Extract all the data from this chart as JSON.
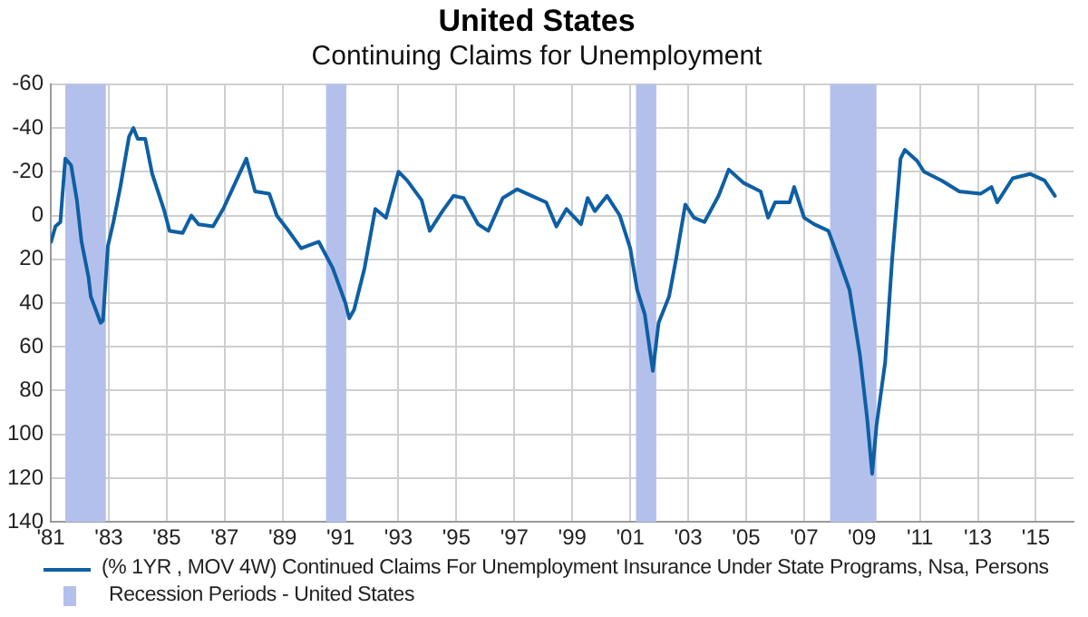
{
  "chart_data": {
    "type": "line",
    "title": "United States",
    "subtitle": "Continuing Claims for Unemployment",
    "x": [
      1981.01,
      1981.16,
      1981.33,
      1981.5,
      1981.7,
      1981.9,
      1982.06,
      1982.3,
      1982.38,
      1982.55,
      1982.72,
      1982.8,
      1982.97,
      1983.16,
      1983.4,
      1983.7,
      1983.85,
      1984.0,
      1984.26,
      1984.5,
      1984.92,
      1985.1,
      1985.55,
      1985.85,
      1986.1,
      1986.6,
      1986.95,
      1987.3,
      1987.75,
      1988.05,
      1988.54,
      1988.8,
      1989.15,
      1989.64,
      1990.25,
      1990.73,
      1991.17,
      1991.3,
      1991.47,
      1991.83,
      1992.2,
      1992.57,
      1993.0,
      1993.3,
      1993.8,
      1994.08,
      1994.52,
      1994.9,
      1995.25,
      1995.75,
      1996.1,
      1996.6,
      1997.1,
      1997.6,
      1998.1,
      1998.45,
      1998.8,
      1999.3,
      1999.53,
      1999.78,
      2000.2,
      2000.64,
      2001.0,
      2001.24,
      2001.5,
      2001.78,
      2001.98,
      2002.34,
      2002.58,
      2002.9,
      2003.2,
      2003.56,
      2004.05,
      2004.4,
      2004.9,
      2005.5,
      2005.76,
      2006.0,
      2006.5,
      2006.66,
      2007.0,
      2007.35,
      2007.84,
      2008.2,
      2008.57,
      2008.93,
      2009.18,
      2009.35,
      2009.5,
      2009.8,
      2010.04,
      2010.33,
      2010.48,
      2010.9,
      2011.14,
      2011.75,
      2012.36,
      2013.1,
      2013.47,
      2013.67,
      2014.2,
      2014.8,
      2015.3,
      2015.66
    ],
    "series": [
      {
        "name": "(% 1YR , MOV 4W) Continued Claims For Unemployment Insurance Under State Programs, Nsa, Persons",
        "color": "#0e5fa3",
        "values": [
          12,
          5,
          3,
          -26,
          -23,
          -7,
          12,
          28,
          37,
          43,
          49,
          48,
          14,
          3,
          -13,
          -36,
          -40,
          -35,
          -35,
          -19,
          -2,
          7,
          8,
          0,
          4,
          5,
          -3,
          -13,
          -26,
          -11,
          -10,
          0,
          6,
          15,
          12,
          24,
          40,
          47,
          43,
          24,
          -3,
          1,
          -20,
          -16,
          -7,
          7,
          -2,
          -9,
          -8,
          4,
          7,
          -8,
          -12,
          -9,
          -6,
          5,
          -3,
          4,
          -8,
          -2,
          -9,
          0,
          15,
          34,
          45,
          71,
          49,
          37,
          20,
          -5,
          1,
          3,
          -9,
          -21,
          -15,
          -11,
          1,
          -6,
          -6,
          -13,
          1,
          4,
          7,
          20,
          34,
          64,
          93,
          118,
          96,
          67,
          20,
          -26,
          -30,
          -25,
          -20,
          -16,
          -11,
          -10,
          -13,
          -6,
          -17,
          -19,
          -16,
          -9
        ]
      }
    ],
    "xlim": [
      1981,
      2016.3
    ],
    "xticks": [
      {
        "value": 1981,
        "label": "'81"
      },
      {
        "value": 1983,
        "label": "'83"
      },
      {
        "value": 1985,
        "label": "'85"
      },
      {
        "value": 1987,
        "label": "'87"
      },
      {
        "value": 1989,
        "label": "'89"
      },
      {
        "value": 1991,
        "label": "'91"
      },
      {
        "value": 1993,
        "label": "'93"
      },
      {
        "value": 1995,
        "label": "'95"
      },
      {
        "value": 1997,
        "label": "'97"
      },
      {
        "value": 1999,
        "label": "'99"
      },
      {
        "value": 2001,
        "label": "'01"
      },
      {
        "value": 2003,
        "label": "'03"
      },
      {
        "value": 2005,
        "label": "'05"
      },
      {
        "value": 2007,
        "label": "'07"
      },
      {
        "value": 2009,
        "label": "'09"
      },
      {
        "value": 2011,
        "label": "'11"
      },
      {
        "value": 2013,
        "label": "'13"
      },
      {
        "value": 2015,
        "label": "'15"
      }
    ],
    "ylim": [
      140,
      -60
    ],
    "yticks": [
      -60,
      -40,
      -20,
      0,
      20,
      40,
      60,
      80,
      100,
      120,
      140
    ],
    "bands": [
      {
        "axis": "x",
        "from": 1981.5,
        "to": 1982.9,
        "label": "Recession Periods - United States",
        "color": "#b4c0ec"
      },
      {
        "axis": "x",
        "from": 1990.5,
        "to": 1991.2,
        "color": "#b4c0ec"
      },
      {
        "axis": "x",
        "from": 2001.2,
        "to": 2001.9,
        "color": "#b4c0ec"
      },
      {
        "axis": "x",
        "from": 2007.9,
        "to": 2009.5,
        "color": "#b4c0ec"
      }
    ],
    "grid": true,
    "legend": "bottom",
    "marker": "none",
    "line_style": "solid"
  }
}
